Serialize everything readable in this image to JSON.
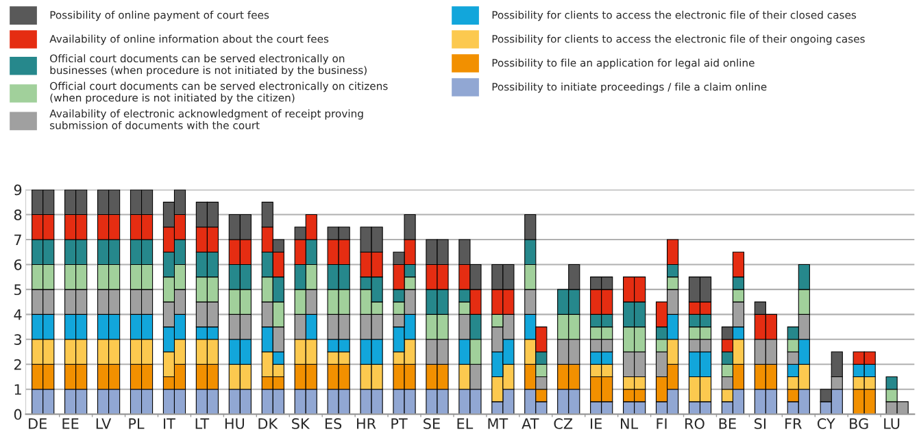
{
  "chart_data": {
    "type": "bar",
    "stacked": true,
    "categories": [
      "DE",
      null,
      "EE",
      null,
      "LV",
      null,
      "PL",
      null,
      "IT",
      null,
      "LT",
      null,
      "HU",
      null,
      "DK",
      null,
      "SK",
      null,
      "ES",
      null,
      "HR",
      null,
      "PT",
      null,
      "SE",
      null,
      "EL",
      null,
      "MT",
      null,
      "AT",
      null,
      "CZ",
      null,
      "IE",
      null,
      "NL",
      null,
      "FI",
      null,
      "RO",
      null,
      "BE",
      null,
      "SI",
      null,
      "FR",
      null,
      "CY",
      null,
      "BG",
      null,
      "LU",
      null
    ],
    "ylim": [
      0,
      9
    ],
    "yticks": [
      0,
      1,
      2,
      3,
      4,
      5,
      6,
      7,
      8,
      9
    ],
    "grid": "y",
    "legend": "top",
    "series": [
      {
        "name": "Possibility to initiate proceedings / file a claim online",
        "color": "#91a7d3",
        "values": [
          1,
          1,
          1,
          1,
          1,
          1,
          1,
          1,
          1,
          1,
          1,
          1,
          1,
          1,
          1,
          1,
          1,
          1,
          1,
          1,
          1,
          1,
          1,
          1,
          1,
          1,
          1,
          1,
          0.5,
          1,
          1,
          0.5,
          1,
          1,
          0.5,
          0.5,
          0.5,
          0.5,
          0.5,
          1,
          0.5,
          0.5,
          0.5,
          1,
          1,
          1,
          0.5,
          1,
          0.5,
          1,
          0,
          0,
          0,
          0
        ]
      },
      {
        "name": "Possibility to file an application for legal aid online",
        "color": "#f29000",
        "values": [
          1,
          1,
          1,
          1,
          1,
          1,
          1,
          1,
          0.5,
          1,
          1,
          1,
          0,
          0,
          0.5,
          0.5,
          1,
          1,
          1,
          1,
          0,
          0,
          1,
          1,
          1,
          1,
          0,
          0,
          0,
          0,
          1,
          0.5,
          1,
          1,
          1,
          1,
          0.5,
          0.5,
          1,
          1,
          0,
          0,
          0,
          1,
          1,
          1,
          0.5,
          0,
          0,
          0,
          1,
          1,
          0,
          0
        ]
      },
      {
        "name": "Possibility for clients to access the electronic file of their ongoing cases",
        "color": "#fcc94f",
        "values": [
          1,
          1,
          1,
          1,
          1,
          1,
          1,
          1,
          1,
          1,
          1,
          1,
          1,
          1,
          1,
          0.5,
          1,
          1,
          0.5,
          0.5,
          1,
          1,
          0.5,
          1,
          0,
          0,
          1,
          0,
          1,
          1,
          1,
          0,
          0,
          0,
          0.5,
          0.5,
          0.5,
          0.5,
          0,
          1,
          1,
          1,
          0.5,
          1,
          0,
          0,
          0.5,
          1,
          0,
          0,
          0.5,
          0.5,
          0,
          0
        ]
      },
      {
        "name": "Possibility for clients to access the electronic file of their closed cases",
        "color": "#12a6db",
        "values": [
          1,
          1,
          1,
          1,
          1,
          1,
          1,
          1,
          1,
          1,
          0.5,
          0.5,
          1,
          1,
          1,
          0.5,
          0,
          1,
          0.5,
          0.5,
          1,
          1,
          1,
          1,
          0,
          0,
          1,
          0,
          1,
          1,
          1,
          0,
          0,
          0,
          0.5,
          0.5,
          0,
          0,
          0,
          1,
          1,
          1,
          0,
          0.5,
          0,
          0,
          0.5,
          1,
          0,
          0,
          0.5,
          0.5,
          0,
          0
        ]
      },
      {
        "name": "Availability of electronic acknowledgment of receipt proving submission of documents with the court",
        "color": "#a0a0a0",
        "values": [
          1,
          1,
          1,
          1,
          1,
          1,
          1,
          1,
          1,
          1,
          1,
          1,
          1,
          1,
          1,
          1,
          1,
          1,
          1,
          1,
          1,
          1,
          0.5,
          1,
          1,
          1,
          1,
          1,
          1,
          1,
          1,
          0.5,
          1,
          1,
          0.5,
          0.5,
          1,
          1,
          1,
          1,
          0.5,
          0.5,
          0.5,
          1,
          1,
          1,
          0.5,
          1,
          0,
          0.5,
          0,
          0,
          0.5,
          0.5
        ]
      },
      {
        "name": "Official court documents can be served electronically on citizens (when procedure is not initiated by the citizen)",
        "color": "#a1d09b",
        "values": [
          1,
          1,
          1,
          1,
          1,
          1,
          1,
          1,
          1,
          1,
          1,
          1,
          1,
          1,
          1,
          1,
          1,
          1,
          1,
          1,
          1,
          0.5,
          0.5,
          0.5,
          1,
          1,
          0.5,
          1,
          0.5,
          0,
          1,
          0.5,
          1,
          1,
          0.5,
          0.5,
          1,
          1,
          0.5,
          0.5,
          0.5,
          0.5,
          0.5,
          0.5,
          0,
          0,
          0.5,
          1,
          0,
          0,
          0,
          0,
          0.5,
          0
        ]
      },
      {
        "name": "Official court documents can be served electronically on businesses (when procedure is not initiated by the business)",
        "color": "#26888c",
        "values": [
          1,
          1,
          1,
          1,
          1,
          1,
          1,
          1,
          1,
          1,
          1,
          1,
          1,
          1,
          1,
          1,
          1,
          1,
          1,
          1,
          0.5,
          1,
          0.5,
          0.5,
          1,
          1,
          0.5,
          1,
          0,
          0,
          1,
          0.5,
          1,
          1,
          0.5,
          0.5,
          1,
          1,
          0.5,
          0.5,
          0.5,
          0.5,
          0.5,
          0.5,
          0,
          0,
          0.5,
          1,
          0,
          0,
          0,
          0,
          0.5,
          0
        ]
      },
      {
        "name": "Availability of online information about the court fees",
        "color": "#e52d12",
        "values": [
          1,
          1,
          1,
          1,
          1,
          1,
          1,
          1,
          1,
          1,
          1,
          1,
          1,
          1,
          1,
          1,
          1,
          1,
          1,
          1,
          1,
          1,
          1,
          1,
          1,
          1,
          1,
          1,
          1,
          1,
          0,
          1,
          0,
          0,
          1,
          1,
          1,
          1,
          1,
          1,
          0.5,
          0.5,
          0.5,
          1,
          1,
          1,
          0,
          0,
          0,
          0,
          0.5,
          0.5,
          0,
          0
        ]
      },
      {
        "name": "Possibility of online payment of court fees",
        "color": "#595959",
        "values": [
          1,
          1,
          1,
          1,
          1,
          1,
          1,
          1,
          1,
          1,
          1,
          1,
          1,
          1,
          1,
          0.5,
          0.5,
          0,
          0.5,
          0.5,
          1,
          1,
          0.5,
          1,
          1,
          1,
          1,
          1,
          1,
          1,
          1,
          0,
          0,
          1,
          0.5,
          0.5,
          0,
          0,
          0,
          0,
          1,
          1,
          0.5,
          0,
          0.5,
          0,
          0,
          0,
          0.5,
          1,
          0,
          0,
          0,
          0
        ]
      }
    ]
  }
}
